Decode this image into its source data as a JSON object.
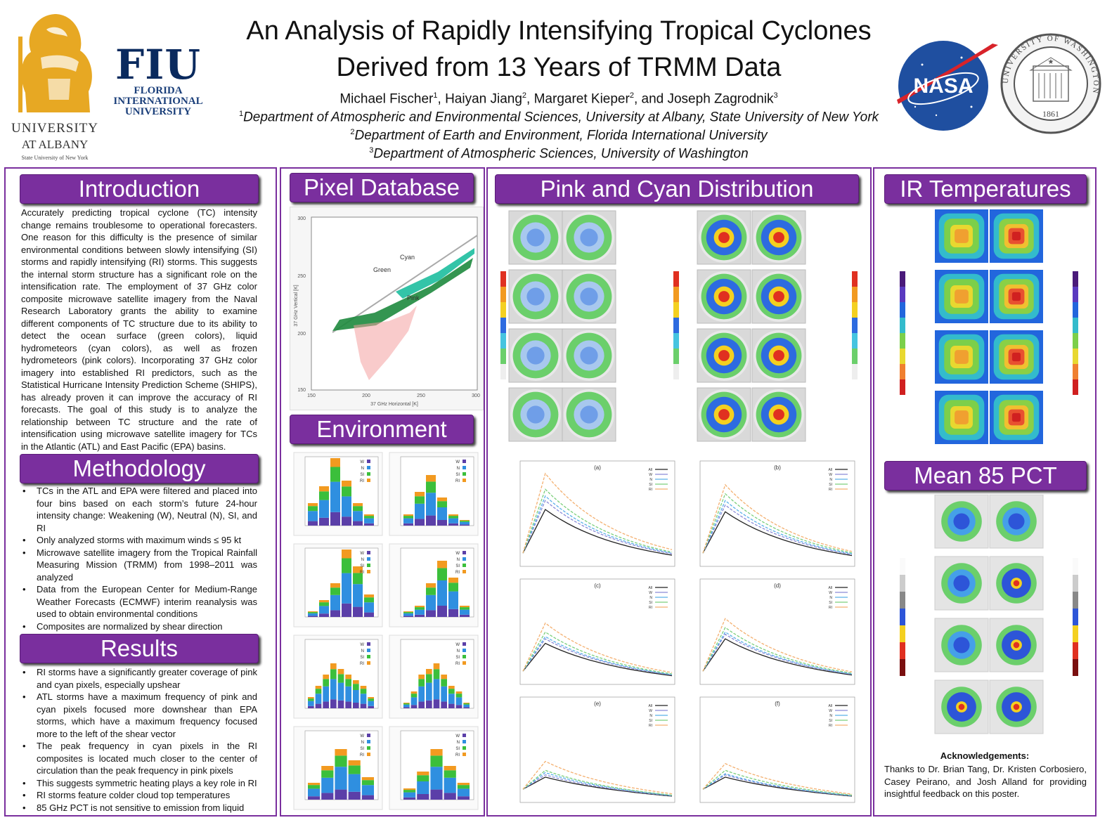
{
  "header": {
    "title_line1": "An Analysis of Rapidly Intensifying Tropical Cyclones",
    "title_line2": "Derived from 13 Years of TRMM Data",
    "authors": [
      {
        "name": "Michael Fischer",
        "sup": "1"
      },
      {
        "name": "Haiyan Jiang",
        "sup": "2"
      },
      {
        "name": "Margaret Kieper",
        "sup": "2"
      },
      {
        "name": "and Joseph Zagrodnik",
        "sup": "3"
      }
    ],
    "affiliations": [
      {
        "sup": "1",
        "text": "Department of Atmospheric and Environmental Sciences, University at Albany, State University of New York"
      },
      {
        "sup": "2",
        "text": "Department of Earth and Environment, Florida International University"
      },
      {
        "sup": "3",
        "text": "Department of Atmospheric Sciences, University of Washington"
      }
    ]
  },
  "logos": {
    "albany": {
      "line1": "UNIVERSITY",
      "line2": "AT ALBANY",
      "line3": "State University of New York"
    },
    "fiu": {
      "big": "FIU",
      "line1": "FLORIDA",
      "line2": "INTERNATIONAL",
      "line3": "UNIVERSITY"
    },
    "nasa": {
      "text": "NASA"
    },
    "uw": {
      "ring_text": "UNIVERSITY OF WASHINGTON",
      "year": "1861"
    }
  },
  "sections": {
    "introduction": {
      "heading": "Introduction",
      "text": "Accurately predicting tropical cyclone (TC) intensity change remains troublesome to operational forecasters. One reason for this difficulty is the presence of similar environmental conditions between slowly intensifying (SI) storms and rapidly intensifying (RI) storms. This suggests the internal storm structure has a significant role on the intensification rate. The employment of 37 GHz color composite microwave satellite imagery from the Naval Research Laboratory grants the ability to examine different components of TC structure due to its ability to detect the ocean surface (green colors), liquid hydrometeors (cyan colors), as well as frozen hydrometeors (pink colors). Incorporating 37 GHz color imagery into established RI predictors, such as the Statistical Hurricane Intensity Prediction Scheme (SHIPS), has already proven it can improve the accuracy of RI forecasts. The goal of this study is to analyze the relationship between TC structure and the rate of intensification using microwave satellite imagery for TCs in the Atlantic (ATL) and East Pacific (EPA) basins."
    },
    "methodology": {
      "heading": "Methodology",
      "bullets": [
        "TCs in the ATL and EPA were filtered and placed into four bins based on each storm’s future 24-hour intensity change: Weakening (W), Neutral (N), SI, and RI",
        "Only analyzed storms with maximum winds ≤ 95 kt",
        "Microwave satellite imagery from the Tropical Rainfall Measuring Mission (TRMM) from 1998–2011 was analyzed",
        "Data from the European Center for Medium-Range Weather Forecasts (ECMWF) interim reanalysis was used to obtain environmental conditions",
        "Composites are normalized by shear direction"
      ]
    },
    "results": {
      "heading": "Results",
      "bullets": [
        "RI storms have a significantly greater coverage of pink and cyan pixels, especially upshear",
        "ATL storms have a maximum frequency of pink and cyan pixels focused more downshear than EPA storms, which have a maximum frequency focused more to the left of the shear vector",
        "The peak frequency in cyan pixels in the RI composites is located much closer to the center of circulation than the peak frequency in pink pixels",
        "This suggests symmetric heating plays a key role in RI",
        "RI storms feature colder cloud top temperatures",
        "85 GHz PCT is not sensitive to emission from liquid"
      ]
    },
    "pixel_database": {
      "heading": "Pixel Database",
      "xlabel": "37 GHz Horizontal [K]",
      "ylabel": "37 GHz Vertical [K]",
      "x_ticks": [
        "150",
        "200",
        "250",
        "300"
      ],
      "y_ticks": [
        "150",
        "200",
        "250",
        "300"
      ],
      "labels": {
        "green": "Green",
        "cyan": "Cyan",
        "pink": "Pink"
      }
    },
    "environment": {
      "heading": "Environment",
      "legend": [
        "W",
        "N",
        "SI",
        "RI"
      ]
    },
    "pink_cyan": {
      "heading": "Pink and Cyan Distribution",
      "panel_labels": [
        "(a)",
        "(b)",
        "(c)",
        "(d)",
        "(e)",
        "(f)"
      ],
      "legend": [
        "All",
        "W",
        "N",
        "SI",
        "RI"
      ]
    },
    "ir_temperatures": {
      "heading": "IR Temperatures"
    },
    "mean_85_pct": {
      "heading": "Mean 85 PCT"
    },
    "acknowledgements": {
      "heading": "Acknowledgements:",
      "text": "Thanks to Dr. Brian Tang, Dr. Kristen Corbosiero, Casey Peirano, and Josh Alland for providing insightful feedback on this poster."
    }
  },
  "colors": {
    "accent": "#7a2f9e",
    "fiu_navy": "#0a2a5e",
    "albany_gold": "#e7a823",
    "nasa_blue": "#1f4fa0",
    "nasa_red": "#d8232a"
  }
}
